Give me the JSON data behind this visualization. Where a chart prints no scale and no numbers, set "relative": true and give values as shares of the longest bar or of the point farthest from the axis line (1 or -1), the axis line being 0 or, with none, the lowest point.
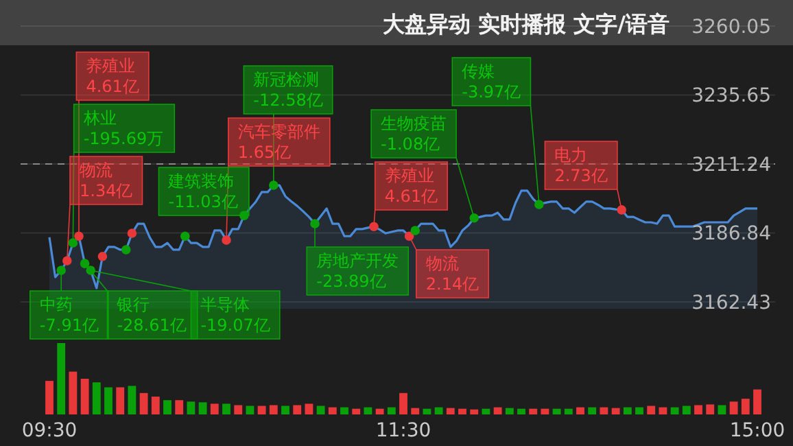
{
  "chart_data": [
    {
      "type": "area",
      "title": "大盘异动  实时播报  文字/语音",
      "categories": [
        null,
        null,
        null,
        null,
        null,
        null,
        null,
        null,
        null,
        null,
        null,
        null,
        null,
        null,
        null,
        null,
        null,
        null,
        null,
        null,
        null,
        null,
        null,
        null,
        null,
        null,
        null,
        null,
        null,
        null,
        null,
        null,
        null,
        null,
        null,
        null,
        null,
        null,
        null,
        null,
        null,
        null,
        null,
        null,
        null,
        null,
        null,
        null,
        null,
        null,
        null,
        null,
        null,
        null,
        null,
        null,
        null,
        null,
        null,
        null,
        null,
        null,
        null,
        null,
        null,
        null,
        null,
        null,
        null,
        null,
        null,
        null,
        null,
        null,
        null,
        null,
        null,
        null,
        null,
        null,
        null,
        null,
        null,
        null,
        null,
        null,
        null,
        null,
        null,
        null,
        null,
        null,
        null,
        null,
        null,
        null,
        null,
        null,
        null,
        null,
        null,
        null,
        null,
        null,
        null,
        null,
        null,
        null,
        null,
        null,
        null,
        null,
        null,
        null,
        null,
        null,
        null,
        null,
        null,
        null,
        null
      ],
      "ylim": [
        3162.43,
        3260.05
      ],
      "yticks": [
        3162.43,
        3186.84,
        3211.24,
        3235.65,
        3260.05
      ],
      "grid": "y",
      "tick_labels": "y",
      "ref_lines": [
        {
          "axis": "y",
          "value": 3211.24,
          "line_style": "dashed",
          "color": "#888888"
        }
      ],
      "series": [
        {
          "type": "area",
          "color": "#4a8ad6",
          "values": [
            3185.3,
            3171.2,
            3173.6,
            3177.0,
            3183.3,
            3185.7,
            3176.0,
            3173.6,
            3167.3,
            3178.5,
            3181.9,
            3181.9,
            3180.9,
            3180.9,
            3186.7,
            3190.1,
            3190.1,
            3185.3,
            3181.9,
            3181.9,
            3183.3,
            3180.9,
            3180.9,
            3185.7,
            3183.3,
            3183.3,
            3181.9,
            3181.9,
            3187.7,
            3187.7,
            3184.3,
            3188.2,
            3188.2,
            3193.0,
            3195.5,
            3197.9,
            3201.3,
            3201.3,
            3203.7,
            3203.7,
            3199.8,
            3198.0,
            3196.4,
            3194.5,
            3192.5,
            3190.1,
            3192.8,
            3195.5,
            3190.1,
            3190.1,
            3185.7,
            3185.7,
            3188.2,
            3188.2,
            3188.7,
            3189.1,
            3188.0,
            3186.7,
            3187.2,
            3187.7,
            3187.7,
            3185.7,
            3187.7,
            3190.1,
            3190.1,
            3190.1,
            3187.7,
            3187.7,
            3181.9,
            3184.0,
            3187.7,
            3189.5,
            3192.1,
            3192.5,
            3193.0,
            3193.0,
            3194.0,
            3191.6,
            3191.6,
            3197.4,
            3201.8,
            3201.8,
            3198.9,
            3196.9,
            3197.5,
            3197.9,
            3197.9,
            3195.5,
            3195.5,
            3194.0,
            3196.0,
            3197.9,
            3197.9,
            3196.8,
            3195.5,
            3195.5,
            3195.2,
            3195.0,
            3192.5,
            3192.5,
            3191.5,
            3190.6,
            3190.6,
            3190.1,
            3193.0,
            3193.0,
            3189.1,
            3189.1,
            3189.1,
            3189.1,
            3189.8,
            3190.6,
            3190.6,
            3190.6,
            3190.6,
            3190.6,
            3193.0,
            3194.2,
            3195.5,
            3195.5,
            3195.5
          ]
        },
        {
          "type": "scatter",
          "marker": "circle",
          "color": "#e8383a",
          "values": [
            null,
            null,
            null,
            3177.0,
            null,
            3185.7,
            null,
            null,
            null,
            3178.5,
            null,
            null,
            null,
            null,
            3186.7,
            null,
            null,
            null,
            null,
            null,
            null,
            null,
            null,
            null,
            null,
            null,
            null,
            null,
            null,
            null,
            3184.3,
            null,
            null,
            null,
            null,
            null,
            null,
            null,
            null,
            null,
            null,
            null,
            null,
            null,
            null,
            null,
            null,
            null,
            null,
            null,
            null,
            null,
            null,
            null,
            null,
            3189.1,
            null,
            null,
            null,
            null,
            null,
            3185.7,
            null,
            null,
            null,
            null,
            null,
            null,
            null,
            null,
            null,
            null,
            null,
            null,
            null,
            null,
            null,
            null,
            null,
            null,
            null,
            null,
            null,
            null,
            null,
            null,
            null,
            null,
            null,
            null,
            null,
            null,
            null,
            null,
            null,
            null,
            null,
            3195.0,
            null,
            null,
            null,
            null,
            null,
            null,
            null,
            null,
            null,
            null,
            null,
            null,
            null,
            null,
            null,
            null,
            null,
            null,
            null,
            null,
            null,
            null,
            null
          ]
        },
        {
          "type": "scatter",
          "marker": "circle",
          "color": "#0aa00a",
          "values": [
            null,
            null,
            3173.6,
            null,
            3183.3,
            null,
            3176.0,
            3173.6,
            null,
            null,
            null,
            null,
            null,
            3180.9,
            null,
            null,
            null,
            null,
            null,
            null,
            null,
            null,
            null,
            3185.7,
            null,
            null,
            null,
            null,
            null,
            null,
            null,
            null,
            null,
            3193.0,
            null,
            null,
            null,
            null,
            3203.7,
            null,
            null,
            null,
            null,
            null,
            null,
            3190.1,
            null,
            null,
            null,
            null,
            null,
            null,
            null,
            null,
            null,
            null,
            null,
            null,
            null,
            null,
            null,
            null,
            3187.7,
            null,
            null,
            null,
            null,
            null,
            null,
            null,
            null,
            null,
            3192.1,
            null,
            null,
            null,
            null,
            null,
            null,
            null,
            null,
            null,
            null,
            3196.9,
            null,
            null,
            null,
            null,
            null,
            null,
            null,
            null,
            null,
            null,
            null,
            null,
            null,
            null,
            null,
            null,
            null,
            null,
            null,
            null,
            null,
            null,
            null,
            null,
            null,
            null,
            null,
            null,
            null,
            null,
            null,
            null,
            null,
            null,
            null,
            null,
            null
          ]
        }
      ],
      "annotations": [
        "养殖业\n4.61亿",
        "林业\n-195.69万",
        "物流\n1.34亿",
        "中药\n-7.91亿",
        "银行\n-28.61亿",
        "半导体\n-19.07亿",
        "汽车零部件\n1.65亿",
        "建筑装饰\n-11.03亿",
        "新冠检测\n-12.58亿",
        "房地产开发\n-23.89亿",
        "养殖业\n4.61亿",
        "生物疫苗\n-1.08亿",
        "传媒\n-3.97亿",
        "电力\n2.73亿",
        "物流\n2.14亿"
      ]
    },
    {
      "type": "bar",
      "relative": true,
      "tick_labels": "x",
      "categories": [
        "09:30",
        null,
        null,
        null,
        null,
        null,
        null,
        null,
        null,
        null,
        null,
        null,
        null,
        null,
        null,
        null,
        null,
        null,
        null,
        null,
        null,
        null,
        null,
        null,
        null,
        null,
        null,
        null,
        null,
        null,
        "11:30",
        null,
        null,
        null,
        null,
        null,
        null,
        null,
        null,
        null,
        null,
        null,
        null,
        null,
        null,
        null,
        null,
        null,
        null,
        null,
        null,
        null,
        null,
        null,
        null,
        null,
        null,
        null,
        null,
        null,
        "15:00"
      ],
      "values": [
        0.47,
        1.0,
        0.6,
        0.5,
        0.45,
        0.38,
        0.38,
        0.4,
        0.3,
        0.25,
        0.2,
        0.2,
        0.18,
        0.17,
        0.15,
        0.15,
        0.13,
        0.12,
        0.12,
        0.13,
        0.12,
        0.13,
        0.15,
        0.12,
        0.1,
        0.1,
        0.08,
        0.1,
        0.08,
        0.1,
        0.3,
        0.09,
        0.08,
        0.1,
        0.09,
        0.08,
        0.07,
        0.08,
        0.1,
        0.09,
        0.08,
        0.08,
        0.08,
        0.08,
        0.08,
        0.1,
        0.1,
        0.1,
        0.09,
        0.1,
        0.1,
        0.12,
        0.1,
        0.1,
        0.12,
        0.13,
        0.14,
        0.13,
        0.18,
        0.22,
        0.35
      ],
      "colors": [
        "#e8383a",
        "#0aa00a",
        "#e8383a",
        "#e8383a",
        "#0aa00a",
        "#0aa00a",
        "#e8383a",
        "#0aa00a",
        "#e8383a",
        "#e8383a",
        "#0aa00a",
        "#e8383a",
        "#0aa00a",
        "#0aa00a",
        "#e8383a",
        "#0aa00a",
        "#e8383a",
        "#0aa00a",
        "#e8383a",
        "#e8383a",
        "#0aa00a",
        "#e8383a",
        "#e8383a",
        "#0aa00a",
        "#e8383a",
        "#0aa00a",
        "#e8383a",
        "#0aa00a",
        "#e8383a",
        "#0aa00a",
        "#e8383a",
        "#e8383a",
        "#0aa00a",
        "#0aa00a",
        "#e8383a",
        "#e8383a",
        "#e8383a",
        "#0aa00a",
        "#e8383a",
        "#0aa00a",
        "#0aa00a",
        "#e8383a",
        "#e8383a",
        "#0aa00a",
        "#0aa00a",
        "#e8383a",
        "#0aa00a",
        "#e8383a",
        "#e8383a",
        "#0aa00a",
        "#0aa00a",
        "#e8383a",
        "#e8383a",
        "#0aa00a",
        "#0aa00a",
        "#e8383a",
        "#e8383a",
        "#0aa00a",
        "#e8383a",
        "#e8383a",
        "#e8383a"
      ]
    }
  ]
}
